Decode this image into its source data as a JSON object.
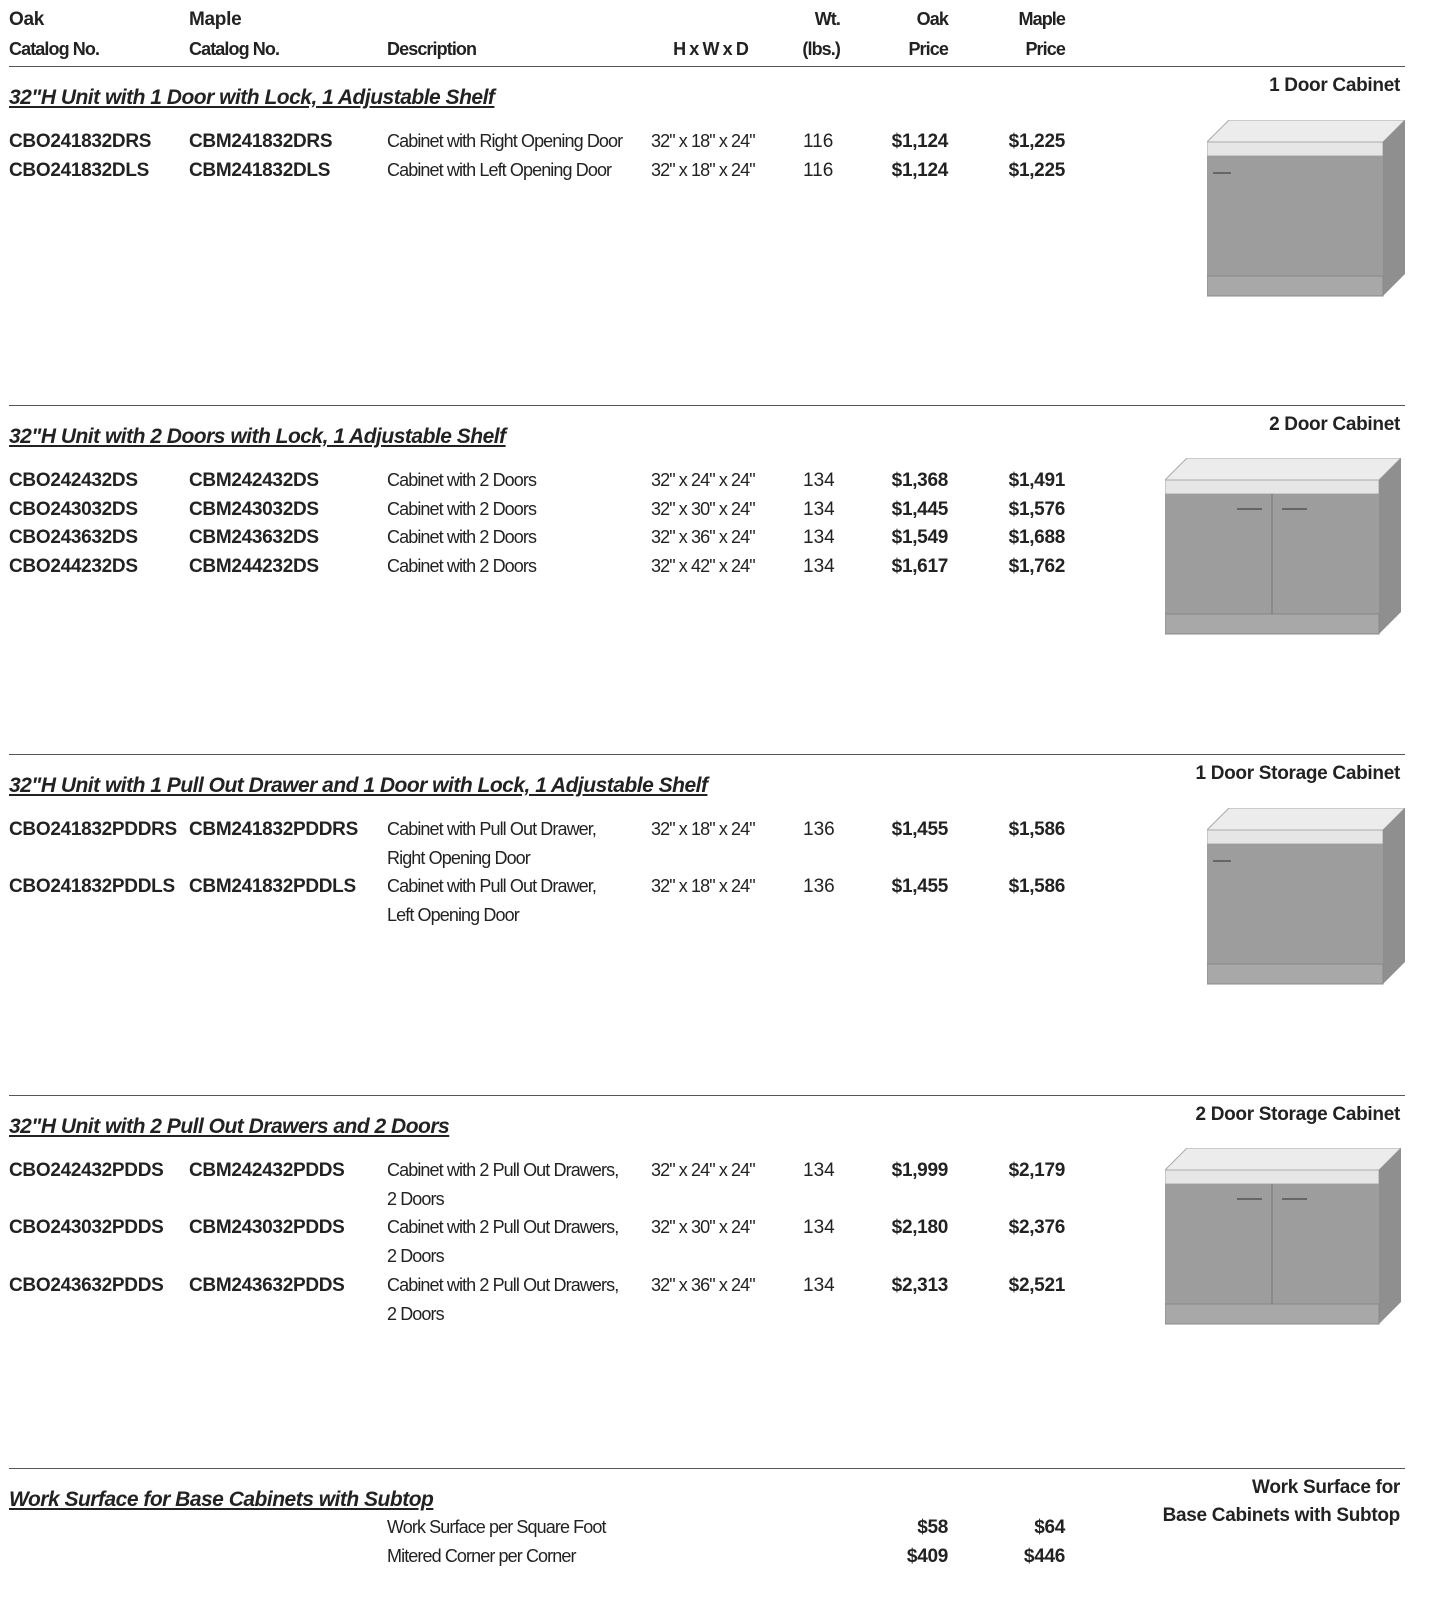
{
  "header": {
    "columns": [
      [
        "Oak",
        "Catalog No."
      ],
      [
        "Maple",
        "Catalog No."
      ],
      [
        "Description"
      ],
      [
        "H x W x D"
      ],
      [
        "Wt.",
        "(lbs.)"
      ],
      [
        "Oak",
        "Price"
      ],
      [
        "Maple",
        "Price"
      ]
    ]
  },
  "sections": [
    {
      "title": "32\"H Unit with 1 Door with Lock, 1 Adjustable Shelf",
      "image_label": [
        "1 Door Cabinet"
      ],
      "rows": [
        {
          "oak_catalog": "CBO241832DRS",
          "maple_catalog": "CBM241832DRS",
          "description": [
            "Cabinet with Right Opening Door"
          ],
          "dimensions": "32\" x 18\" x 24\"",
          "weight": "116",
          "oak_price": "$1,124",
          "maple_price": "$1,225"
        },
        {
          "oak_catalog": "CBO241832DLS",
          "maple_catalog": "CBM241832DLS",
          "description": [
            "Cabinet with Left Opening Door"
          ],
          "dimensions": "32\" x 18\" x 24\"",
          "weight": "116",
          "oak_price": "$1,124",
          "maple_price": "$1,225"
        }
      ]
    },
    {
      "title": "32\"H Unit with 2 Doors with Lock, 1 Adjustable Shelf",
      "image_label": [
        "2 Door Cabinet"
      ],
      "rows": [
        {
          "oak_catalog": "CBO242432DS",
          "maple_catalog": "CBM242432DS",
          "description": [
            "Cabinet with 2 Doors"
          ],
          "dimensions": "32\" x 24\" x 24\"",
          "weight": "134",
          "oak_price": "$1,368",
          "maple_price": "$1,491"
        },
        {
          "oak_catalog": "CBO243032DS",
          "maple_catalog": "CBM243032DS",
          "description": [
            "Cabinet with 2 Doors"
          ],
          "dimensions": "32\" x 30\" x 24\"",
          "weight": "134",
          "oak_price": "$1,445",
          "maple_price": "$1,576"
        },
        {
          "oak_catalog": "CBO243632DS",
          "maple_catalog": "CBM243632DS",
          "description": [
            "Cabinet with 2 Doors"
          ],
          "dimensions": "32\" x 36\" x 24\"",
          "weight": "134",
          "oak_price": "$1,549",
          "maple_price": "$1,688"
        },
        {
          "oak_catalog": "CBO244232DS",
          "maple_catalog": "CBM244232DS",
          "description": [
            "Cabinet with 2 Doors"
          ],
          "dimensions": "32\" x 42\" x 24\"",
          "weight": "134",
          "oak_price": "$1,617",
          "maple_price": "$1,762"
        }
      ]
    },
    {
      "title": "32\"H Unit with 1 Pull Out Drawer and 1 Door with Lock, 1 Adjustable Shelf",
      "image_label": [
        "1 Door Storage Cabinet"
      ],
      "rows": [
        {
          "oak_catalog": "CBO241832PDDRS",
          "maple_catalog": "CBM241832PDDRS",
          "description": [
            "Cabinet with Pull Out Drawer,",
            "Right Opening Door"
          ],
          "dimensions": "32\" x 18\" x 24\"",
          "weight": "136",
          "oak_price": "$1,455",
          "maple_price": "$1,586"
        },
        {
          "oak_catalog": "CBO241832PDDLS",
          "maple_catalog": "CBM241832PDDLS",
          "description": [
            "Cabinet with Pull Out Drawer,",
            "Left Opening Door"
          ],
          "dimensions": "32\" x 18\" x 24\"",
          "weight": "136",
          "oak_price": "$1,455",
          "maple_price": "$1,586"
        }
      ]
    },
    {
      "title": "32\"H Unit with 2 Pull Out Drawers and 2 Doors",
      "image_label": [
        "2 Door Storage Cabinet"
      ],
      "rows": [
        {
          "oak_catalog": "CBO242432PDDS",
          "maple_catalog": "CBM242432PDDS",
          "description": [
            "Cabinet with 2 Pull Out Drawers,",
            "2 Doors"
          ],
          "dimensions": "32\" x 24\" x 24\"",
          "weight": "134",
          "oak_price": "$1,999",
          "maple_price": "$2,179"
        },
        {
          "oak_catalog": "CBO243032PDDS",
          "maple_catalog": "CBM243032PDDS",
          "description": [
            "Cabinet with 2 Pull Out Drawers,",
            "2 Doors"
          ],
          "dimensions": "32\" x 30\" x 24\"",
          "weight": "134",
          "oak_price": "$2,180",
          "maple_price": "$2,376"
        },
        {
          "oak_catalog": "CBO243632PDDS",
          "maple_catalog": "CBM243632PDDS",
          "description": [
            "Cabinet with 2 Pull Out Drawers,",
            "2 Doors"
          ],
          "dimensions": "32\" x 36\" x 24\"",
          "weight": "134",
          "oak_price": "$2,313",
          "maple_price": "$2,521"
        }
      ]
    },
    {
      "title": "Work Surface for Base Cabinets with Subtop",
      "image_label": [
        "Work Surface for",
        "Base Cabinets with Subtop"
      ],
      "rows": [
        {
          "description": [
            "Work Surface per Square Foot"
          ],
          "oak_price": "$58",
          "maple_price": "$64"
        },
        {
          "description": [
            "Mitered Corner per Corner"
          ],
          "oak_price": "$409",
          "maple_price": "$446"
        }
      ]
    }
  ]
}
